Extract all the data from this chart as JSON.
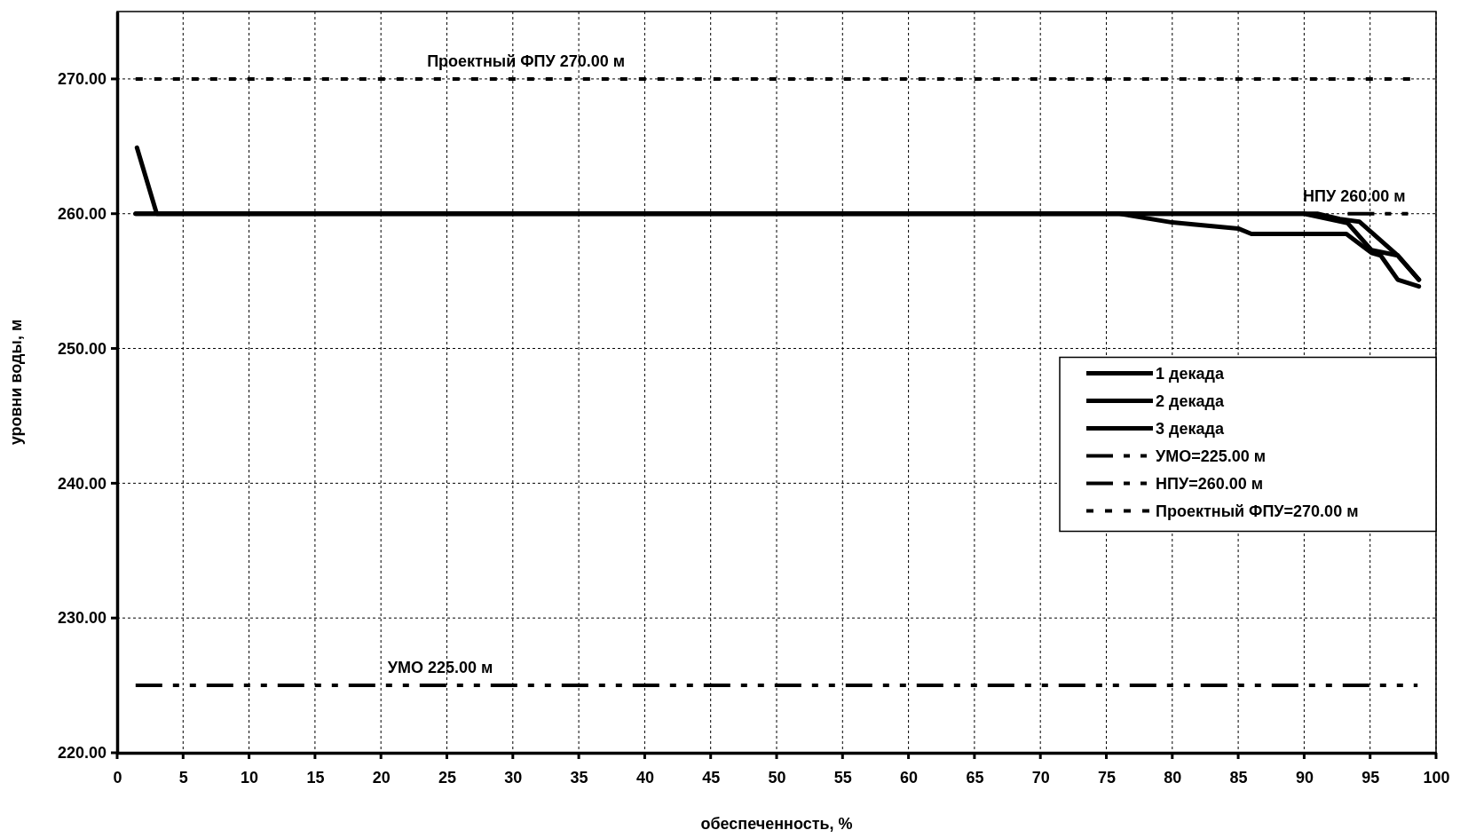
{
  "chart_data": {
    "type": "line",
    "xlabel": "обеспеченность, %",
    "ylabel": "уровни воды, м",
    "xlim": [
      0,
      100
    ],
    "xticks": [
      0,
      5,
      10,
      15,
      20,
      25,
      30,
      35,
      40,
      45,
      50,
      55,
      60,
      65,
      70,
      75,
      80,
      85,
      90,
      95,
      100
    ],
    "ylim": [
      220,
      275
    ],
    "yticks": [
      {
        "value": 220,
        "label": "220.00"
      },
      {
        "value": 230,
        "label": "230.00"
      },
      {
        "value": 240,
        "label": "240.00"
      },
      {
        "value": 250,
        "label": "250.00"
      },
      {
        "value": 260,
        "label": "260.00"
      },
      {
        "value": 270,
        "label": "270.00"
      }
    ],
    "grid": true,
    "legend": "right",
    "line_style": "solid",
    "series": [
      {
        "name": "1 декада",
        "color": "#000000",
        "x": [
          1.5,
          3.0,
          76,
          80,
          85,
          86,
          93.2,
          95.1,
          95.8,
          97.1,
          98.7
        ],
        "values": [
          264.9,
          260,
          260,
          259.35,
          258.9,
          258.5,
          258.5,
          257.1,
          256.9,
          255.1,
          254.6
        ]
      },
      {
        "name": "2 декада",
        "color": "#000000",
        "x": [
          1.4,
          90,
          93.3,
          95.1,
          97.1,
          98.7
        ],
        "values": [
          260,
          260,
          259.3,
          257.3,
          256.9,
          255.1
        ]
      },
      {
        "name": "3 декада",
        "color": "#000000",
        "x": [
          1.4,
          91,
          92.7,
          94.2,
          97.1,
          98.7
        ],
        "values": [
          260,
          260,
          259.6,
          259.4,
          256.9,
          255.1
        ]
      },
      {
        "name": "УМО=225.00 м",
        "color": "#000000",
        "line_style": "dashed",
        "x": [
          1.4,
          98.6
        ],
        "values": [
          225,
          225
        ]
      },
      {
        "name": "НПУ=260.00 м",
        "color": "#000000",
        "line_style": "dashed",
        "x": [
          93.3,
          98.6
        ],
        "values": [
          260,
          260
        ]
      },
      {
        "name": "Проектный ФПУ=270.00 м",
        "color": "#000000",
        "line_style": "dotted",
        "x": [
          1.4,
          98.6
        ],
        "values": [
          270,
          270
        ]
      }
    ],
    "annotations": [
      {
        "text": "Проектный ФПУ 270.00 м",
        "x": 31,
        "y": 270
      },
      {
        "text": "НПУ 260.00 м",
        "x": 93.8,
        "y": 260
      },
      {
        "text": "УМО 225.00 м",
        "x": 24.5,
        "y": 225
      }
    ]
  }
}
